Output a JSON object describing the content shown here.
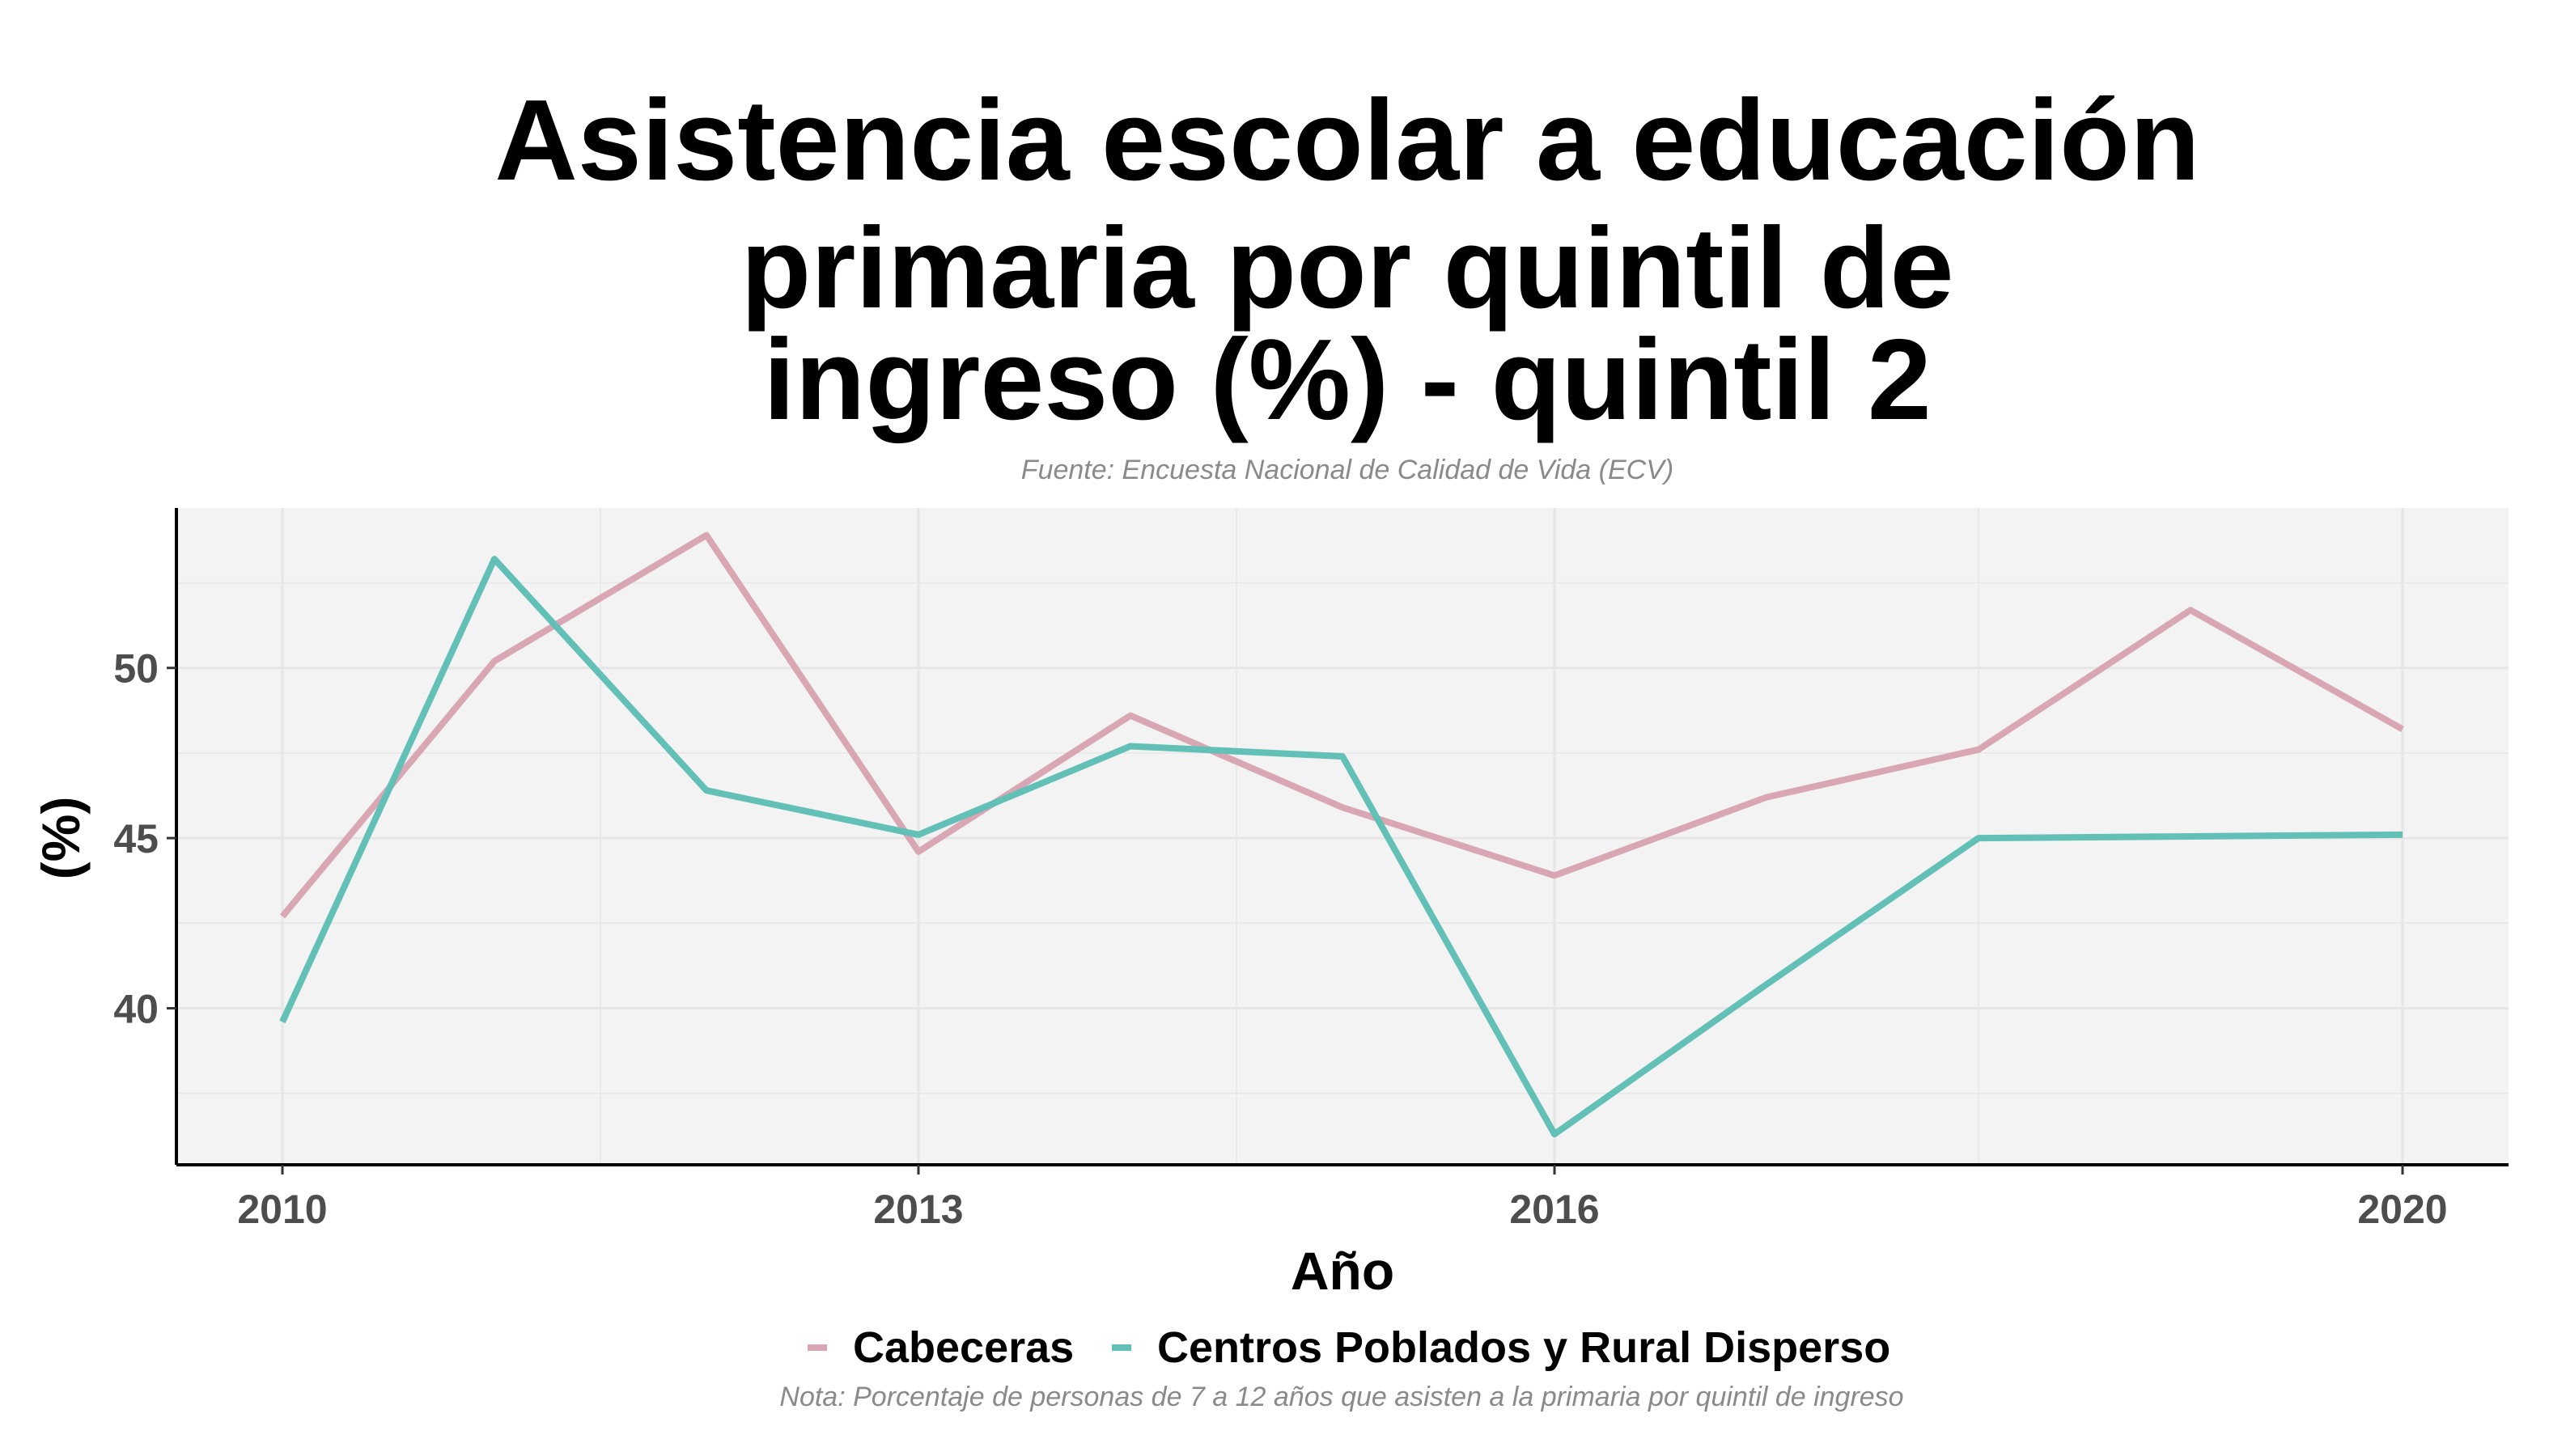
{
  "chart_data": {
    "type": "line",
    "title_lines": [
      "Asistencia escolar a educación",
      "primaria por quintil de",
      "ingreso (%) - quintil 2"
    ],
    "subtitle": "Fuente: Encuesta Nacional de Calidad de Vida (ECV)",
    "caption": "Nota: Porcentaje de personas de 7 a 12 años que asisten a la primaria por quintil de ingreso",
    "xlabel": "Año",
    "ylabel": "(%)",
    "x": [
      2010,
      2011,
      2012,
      2013,
      2014,
      2015,
      2016,
      2017,
      2018,
      2019,
      2020
    ],
    "x_ticks": [
      2010,
      2013,
      2016,
      2020
    ],
    "y_ticks": [
      40,
      45,
      50
    ],
    "xlim": [
      2009.5,
      2020.5
    ],
    "ylim": [
      35.4,
      54.7
    ],
    "grid": true,
    "legend_position": "bottom",
    "series": [
      {
        "name": "Cabeceras",
        "color": "#d9a7b3",
        "values": [
          42.7,
          50.2,
          53.9,
          44.6,
          48.6,
          45.9,
          43.9,
          46.2,
          47.6,
          51.7,
          48.2
        ]
      },
      {
        "name": "Centros Poblados y Rural Disperso",
        "color": "#62c0b7",
        "values": [
          39.6,
          53.2,
          46.4,
          45.1,
          47.7,
          47.4,
          36.3,
          40.7,
          45.0,
          45.05,
          45.1
        ]
      }
    ],
    "colors": {
      "panel_background": "#f3f3f3",
      "grid": "#e6e6e6",
      "axis": "#000000"
    }
  }
}
